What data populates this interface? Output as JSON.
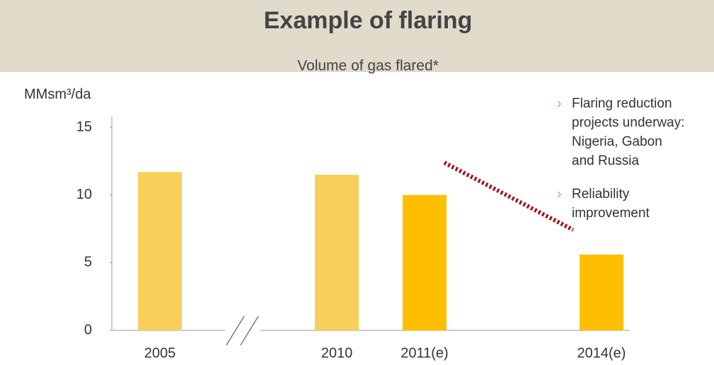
{
  "chart_data": {
    "type": "bar",
    "title": "Example of flaring",
    "subtitle": "Volume of gas flared*",
    "y_label": "MMsm³/da",
    "categories": [
      "2005",
      "2010",
      "2011(e)",
      "2014(e)"
    ],
    "values": [
      11.7,
      11.5,
      10,
      5.6
    ],
    "colors": [
      "#f9cf5c",
      "#f9cf5c",
      "#fdbf00",
      "#fdbf00"
    ],
    "ylim": [
      0,
      15
    ],
    "yticks": [
      0,
      5,
      10,
      15
    ],
    "grid": false,
    "annotations": [
      [
        "Flaring reduction",
        "projects underway:",
        "Nigeria, Gabon",
        "and Russia"
      ],
      [
        "Reliability",
        "improvement"
      ]
    ]
  }
}
